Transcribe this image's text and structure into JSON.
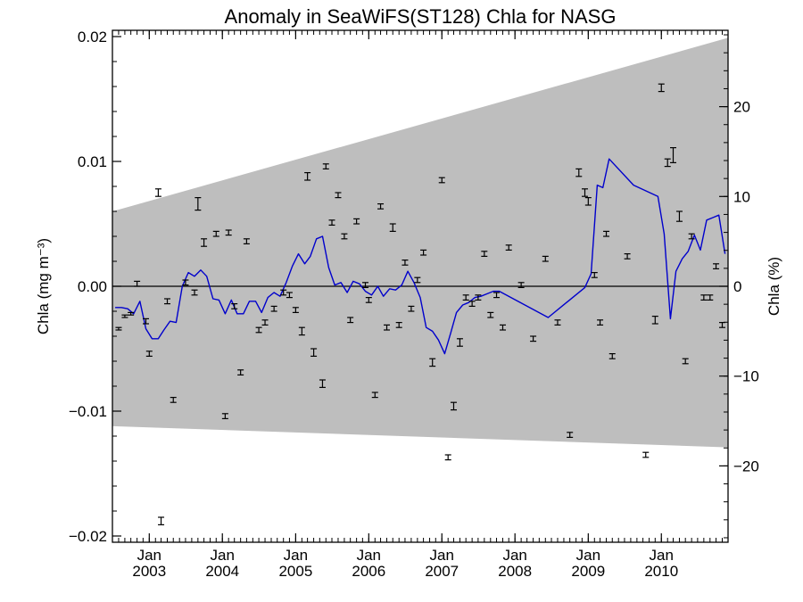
{
  "chart_data": {
    "type": "line",
    "title": "Anomaly in SeaWiFS(ST128) Chla for NASG",
    "ylabel_left": "Chla (mg m⁻³)",
    "ylabel_right": "Chla (%)",
    "xlabel": "",
    "x_range": [
      "2002-07-01",
      "2010-11-30"
    ],
    "ylim_left": [
      -0.0205,
      0.0205
    ],
    "ylim_right": [
      -28.5,
      28.5
    ],
    "yticks_left": [
      {
        "value": 0.02,
        "label": "0.02"
      },
      {
        "value": 0.01,
        "label": "0.01"
      },
      {
        "value": 0.0,
        "label": "0.00"
      },
      {
        "value": -0.01,
        "label": "−0.01"
      },
      {
        "value": -0.02,
        "label": "−0.02"
      }
    ],
    "yticks_right": [
      {
        "value": 20,
        "label": "20"
      },
      {
        "value": 10,
        "label": "10"
      },
      {
        "value": 0,
        "label": "0"
      },
      {
        "value": -10,
        "label": "−10"
      },
      {
        "value": -20,
        "label": "−20"
      }
    ],
    "xticks": [
      {
        "date": "2003-01-01",
        "month": "Jan",
        "year": "2003"
      },
      {
        "date": "2004-01-01",
        "month": "Jan",
        "year": "2004"
      },
      {
        "date": "2005-01-01",
        "month": "Jan",
        "year": "2005"
      },
      {
        "date": "2006-01-01",
        "month": "Jan",
        "year": "2006"
      },
      {
        "date": "2007-01-01",
        "month": "Jan",
        "year": "2007"
      },
      {
        "date": "2008-01-01",
        "month": "Jan",
        "year": "2008"
      },
      {
        "date": "2009-01-01",
        "month": "Jan",
        "year": "2009"
      },
      {
        "date": "2010-01-01",
        "month": "Jan",
        "year": "2010"
      }
    ],
    "uncertainty_band": {
      "start_date": "2002-07-01",
      "end_date": "2010-11-30",
      "upper": [
        0.006,
        0.0199
      ],
      "lower": [
        -0.0112,
        -0.0129
      ],
      "color": "#bebebe"
    },
    "line_series": {
      "color": "#0000cc",
      "x": [
        "2002-07-15",
        "2002-08-15",
        "2002-09-15",
        "2002-10-15",
        "2002-11-15",
        "2002-12-15",
        "2003-01-15",
        "2003-02-15",
        "2003-03-15",
        "2003-04-15",
        "2003-05-15",
        "2003-06-15",
        "2003-07-15",
        "2003-08-15",
        "2003-09-15",
        "2003-10-15",
        "2003-11-15",
        "2003-12-15",
        "2004-01-15",
        "2004-02-15",
        "2004-03-15",
        "2004-04-15",
        "2004-05-15",
        "2004-06-15",
        "2004-07-15",
        "2004-08-15",
        "2004-09-15",
        "2004-10-15",
        "2004-11-15",
        "2004-12-15",
        "2005-01-15",
        "2005-02-15",
        "2005-03-15",
        "2005-04-15",
        "2005-05-15",
        "2005-06-15",
        "2005-07-15",
        "2005-08-15",
        "2005-09-15",
        "2005-10-15",
        "2005-11-15",
        "2005-12-15",
        "2006-01-15",
        "2006-02-15",
        "2006-03-15",
        "2006-04-15",
        "2006-05-15",
        "2006-06-15",
        "2006-07-15",
        "2006-08-15",
        "2006-09-15",
        "2006-10-15",
        "2006-11-15",
        "2006-12-15",
        "2007-01-15",
        "2007-02-15",
        "2007-03-15",
        "2007-04-15",
        "2007-05-15",
        "2007-06-15",
        "2007-07-15",
        "2007-08-15",
        "2007-09-15",
        "2007-10-15",
        "2008-06-15",
        "2008-12-15",
        "2009-01-15",
        "2009-02-15",
        "2009-03-15",
        "2009-04-15",
        "2009-08-15",
        "2009-12-15",
        "2010-01-15",
        "2010-02-15",
        "2010-03-15",
        "2010-04-15",
        "2010-05-15",
        "2010-06-15",
        "2010-07-15",
        "2010-08-15",
        "2010-09-15",
        "2010-10-15",
        "2010-11-15"
      ],
      "y": [
        -0.0017,
        -0.0017,
        -0.0018,
        -0.0022,
        -0.0012,
        -0.0034,
        -0.0042,
        -0.0042,
        -0.0035,
        -0.0028,
        -0.0029,
        0.0,
        0.0011,
        0.0008,
        0.0013,
        0.0008,
        -0.001,
        -0.0011,
        -0.0022,
        -0.0011,
        -0.0022,
        -0.0022,
        -0.0012,
        -0.0012,
        -0.0021,
        -0.0009,
        -0.0005,
        -0.0008,
        0.0003,
        0.0016,
        0.0026,
        0.0018,
        0.0024,
        0.0038,
        0.004,
        0.0015,
        0.0001,
        0.0003,
        -0.0005,
        0.0004,
        0.0002,
        -0.0004,
        -0.0007,
        0.0,
        -0.0008,
        -0.0002,
        -0.0003,
        0.0001,
        0.0012,
        0.0003,
        -0.0009,
        -0.0033,
        -0.0036,
        -0.0043,
        -0.0054,
        -0.0037,
        -0.0021,
        -0.0015,
        -0.0013,
        -0.0009,
        -0.0008,
        -0.0006,
        -0.0004,
        -0.0004,
        -0.0025,
        -0.0001,
        0.001,
        0.0081,
        0.0079,
        0.0102,
        0.0081,
        0.0072,
        0.0042,
        -0.0026,
        0.0012,
        0.0022,
        0.0028,
        0.0041,
        0.0029,
        0.0053,
        0.0055,
        0.0057,
        0.0026
      ]
    },
    "error_bar_points": {
      "color": "#000000",
      "x": [
        "2002-08-01",
        "2002-09-01",
        "2002-10-01",
        "2002-11-01",
        "2002-12-15",
        "2003-01-01",
        "2003-02-15",
        "2003-03-01",
        "2003-04-01",
        "2003-05-01",
        "2003-07-01",
        "2003-08-15",
        "2003-09-01",
        "2003-10-01",
        "2003-12-01",
        "2004-01-15",
        "2004-02-01",
        "2004-03-01",
        "2004-04-01",
        "2004-05-01",
        "2004-07-01",
        "2004-08-01",
        "2004-09-15",
        "2004-11-01",
        "2004-12-01",
        "2005-01-01",
        "2005-02-01",
        "2005-03-01",
        "2005-04-01",
        "2005-05-15",
        "2005-06-01",
        "2005-07-01",
        "2005-08-01",
        "2005-09-01",
        "2005-10-01",
        "2005-11-01",
        "2005-12-15",
        "2006-01-01",
        "2006-02-01",
        "2006-03-01",
        "2006-04-01",
        "2006-05-01",
        "2006-06-01",
        "2006-07-01",
        "2006-08-01",
        "2006-09-01",
        "2006-10-01",
        "2006-11-15",
        "2007-01-01",
        "2007-02-01",
        "2007-03-01",
        "2007-04-01",
        "2007-05-01",
        "2007-06-01",
        "2007-07-01",
        "2007-08-01",
        "2007-09-01",
        "2007-10-01",
        "2007-11-01",
        "2007-12-01",
        "2008-02-01",
        "2008-04-01",
        "2008-06-01",
        "2008-08-01",
        "2008-10-01",
        "2008-11-15",
        "2008-12-15",
        "2009-01-01",
        "2009-02-01",
        "2009-03-01",
        "2009-04-01",
        "2009-05-01",
        "2009-07-15",
        "2009-10-15",
        "2009-12-01",
        "2010-01-01",
        "2010-02-01",
        "2010-03-01",
        "2010-04-01",
        "2010-05-01",
        "2010-06-01",
        "2010-08-01",
        "2010-09-01",
        "2010-10-01",
        "2010-11-01"
      ],
      "y": [
        -0.0034,
        -0.0024,
        -0.0022,
        0.0002,
        -0.0028,
        -0.0054,
        0.0075,
        -0.0188,
        -0.0012,
        -0.0091,
        0.0003,
        -0.0005,
        0.0066,
        0.0035,
        0.0042,
        -0.0104,
        0.0043,
        -0.0016,
        -0.0069,
        0.0036,
        -0.0035,
        -0.0029,
        -0.0018,
        -0.0005,
        -0.0007,
        -0.0019,
        -0.0036,
        0.0088,
        -0.0053,
        -0.0078,
        0.0096,
        0.0051,
        0.0073,
        0.004,
        -0.0027,
        0.0052,
        0.0001,
        -0.0011,
        -0.0087,
        0.0064,
        -0.0033,
        0.0047,
        -0.0031,
        0.0019,
        -0.0018,
        0.0005,
        0.0027,
        -0.0061,
        0.0085,
        -0.0137,
        -0.0096,
        -0.0045,
        -0.0009,
        -0.0014,
        -0.0009,
        0.0026,
        -0.0023,
        -0.0007,
        -0.0033,
        0.0031,
        0.0001,
        -0.0042,
        0.0022,
        -0.0029,
        -0.0119,
        0.0091,
        0.0075,
        0.0068,
        0.0009,
        -0.0029,
        0.0042,
        -0.0056,
        0.0024,
        -0.0135,
        -0.0027,
        0.0159,
        0.0099,
        0.0105,
        0.0056,
        -0.006,
        0.004,
        -0.0009,
        -0.0009,
        0.0016,
        -0.0031
      ],
      "err": [
        0.0001,
        0.0001,
        0.0001,
        0.0002,
        0.0002,
        0.0002,
        0.0003,
        0.0003,
        0.0002,
        0.0002,
        0.0002,
        0.0002,
        0.0005,
        0.0003,
        0.0002,
        0.0002,
        0.0002,
        0.0002,
        0.0002,
        0.0002,
        0.0002,
        0.0002,
        0.0002,
        0.0002,
        0.0002,
        0.0002,
        0.0003,
        0.0003,
        0.0003,
        0.0003,
        0.0002,
        0.0002,
        0.0002,
        0.0002,
        0.0002,
        0.0002,
        0.0002,
        0.0002,
        0.0002,
        0.0002,
        0.0002,
        0.0003,
        0.0002,
        0.0002,
        0.0002,
        0.0002,
        0.0002,
        0.0003,
        0.0002,
        0.0002,
        0.0003,
        0.0003,
        0.0002,
        0.0002,
        0.0002,
        0.0002,
        0.0002,
        0.0002,
        0.0002,
        0.0002,
        0.0002,
        0.0002,
        0.0002,
        0.0002,
        0.0002,
        0.0003,
        0.0003,
        0.0003,
        0.0002,
        0.0002,
        0.0002,
        0.0002,
        0.0002,
        0.0002,
        0.0003,
        0.0003,
        0.0003,
        0.0006,
        0.0004,
        0.0002,
        0.0002,
        0.0002,
        0.0002,
        0.0002,
        0.0002
      ]
    },
    "zero_line": {
      "value": 0,
      "color": "#000000"
    },
    "grid": false,
    "legend": "none"
  }
}
